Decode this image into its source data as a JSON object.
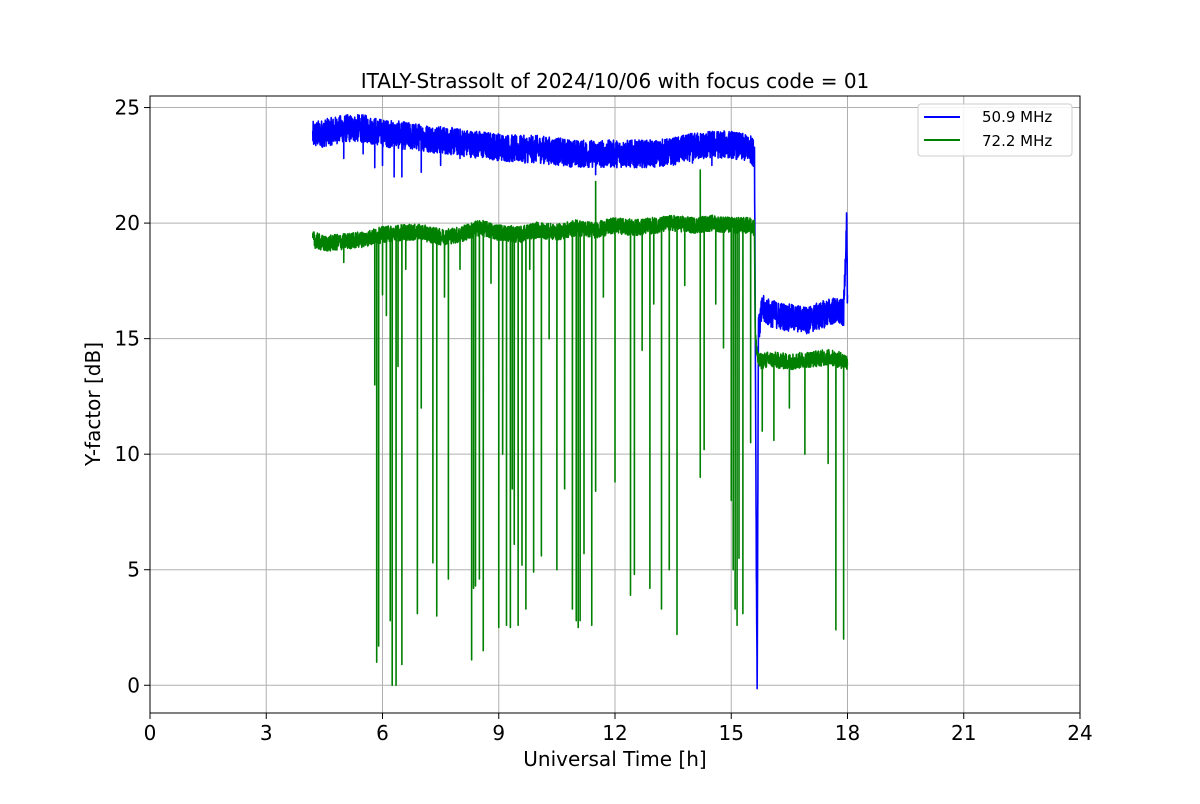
{
  "chart_data": {
    "type": "line",
    "title": "ITALY-Strassolt of 2024/10/06 with focus code = 01",
    "xlabel": "Universal Time [h]",
    "ylabel": "Y-factor [dB]",
    "xlim": [
      0,
      24
    ],
    "ylim": [
      -1.2,
      25.5
    ],
    "xticks": [
      0,
      3,
      6,
      9,
      12,
      15,
      18,
      21,
      24
    ],
    "yticks": [
      0,
      5,
      10,
      15,
      20,
      25
    ],
    "grid": true,
    "legend_position": "top-right",
    "series": [
      {
        "name": "50.9 MHz",
        "color": "#0000ff",
        "base": [
          [
            4.2,
            23.8
          ],
          [
            4.5,
            23.9
          ],
          [
            5.0,
            24.1
          ],
          [
            5.5,
            24.1
          ],
          [
            6.0,
            23.9
          ],
          [
            6.5,
            23.8
          ],
          [
            7.0,
            23.7
          ],
          [
            7.5,
            23.6
          ],
          [
            8.0,
            23.5
          ],
          [
            8.5,
            23.4
          ],
          [
            9.0,
            23.3
          ],
          [
            9.5,
            23.2
          ],
          [
            10.0,
            23.2
          ],
          [
            10.5,
            23.1
          ],
          [
            11.0,
            23.0
          ],
          [
            11.5,
            23.0
          ],
          [
            12.0,
            23.0
          ],
          [
            12.5,
            23.0
          ],
          [
            13.0,
            23.0
          ],
          [
            13.5,
            23.1
          ],
          [
            14.0,
            23.3
          ],
          [
            14.5,
            23.4
          ],
          [
            15.0,
            23.4
          ],
          [
            15.5,
            23.2
          ],
          [
            15.6,
            23.0
          ],
          [
            15.65,
            4.5
          ],
          [
            15.67,
            0.0
          ],
          [
            15.7,
            15.3
          ],
          [
            15.8,
            16.3
          ],
          [
            16.0,
            16.1
          ],
          [
            16.5,
            15.9
          ],
          [
            17.0,
            15.8
          ],
          [
            17.3,
            16.0
          ],
          [
            17.6,
            16.2
          ],
          [
            17.9,
            16.1
          ],
          [
            17.98,
            20.2
          ],
          [
            18.0,
            16.3
          ]
        ],
        "noise_amplitude": 0.6,
        "dips": [
          [
            5.0,
            22.8
          ],
          [
            5.5,
            23.0
          ],
          [
            5.8,
            22.4
          ],
          [
            6.0,
            22.5
          ],
          [
            6.3,
            22.0
          ],
          [
            6.5,
            22.0
          ],
          [
            7.0,
            22.2
          ],
          [
            7.5,
            22.5
          ],
          [
            8.0,
            22.8
          ],
          [
            11.5,
            22.1
          ],
          [
            12.5,
            22.4
          ],
          [
            13.0,
            22.5
          ],
          [
            14.0,
            22.6
          ],
          [
            14.5,
            22.5
          ]
        ],
        "spikes": []
      },
      {
        "name": "72.2 MHz",
        "color": "#008000",
        "base": [
          [
            4.2,
            19.3
          ],
          [
            4.5,
            19.1
          ],
          [
            5.0,
            19.2
          ],
          [
            5.5,
            19.3
          ],
          [
            6.0,
            19.5
          ],
          [
            6.5,
            19.6
          ],
          [
            7.0,
            19.6
          ],
          [
            7.5,
            19.4
          ],
          [
            8.0,
            19.5
          ],
          [
            8.5,
            19.8
          ],
          [
            9.0,
            19.6
          ],
          [
            9.5,
            19.5
          ],
          [
            10.0,
            19.7
          ],
          [
            10.5,
            19.6
          ],
          [
            11.0,
            19.8
          ],
          [
            11.5,
            19.7
          ],
          [
            12.0,
            19.9
          ],
          [
            12.5,
            19.8
          ],
          [
            13.0,
            19.9
          ],
          [
            13.5,
            20.0
          ],
          [
            14.0,
            19.9
          ],
          [
            14.5,
            20.0
          ],
          [
            15.0,
            19.9
          ],
          [
            15.5,
            19.9
          ],
          [
            15.6,
            19.8
          ],
          [
            15.62,
            15.0
          ],
          [
            15.7,
            14.0
          ],
          [
            16.0,
            14.1
          ],
          [
            16.5,
            14.0
          ],
          [
            17.0,
            14.1
          ],
          [
            17.5,
            14.2
          ],
          [
            18.0,
            14.0
          ]
        ],
        "noise_amplitude": 0.35,
        "dips": [
          [
            5.0,
            18.3
          ],
          [
            5.8,
            13.0
          ],
          [
            5.85,
            1.0
          ],
          [
            5.9,
            1.7
          ],
          [
            6.0,
            16.9
          ],
          [
            6.1,
            16.0
          ],
          [
            6.2,
            2.8
          ],
          [
            6.25,
            0.0
          ],
          [
            6.35,
            0.0
          ],
          [
            6.4,
            13.8
          ],
          [
            6.5,
            0.9
          ],
          [
            6.6,
            18.0
          ],
          [
            6.9,
            3.1
          ],
          [
            7.0,
            12.0
          ],
          [
            7.3,
            5.3
          ],
          [
            7.4,
            3.0
          ],
          [
            7.6,
            16.8
          ],
          [
            7.7,
            4.6
          ],
          [
            8.0,
            18.0
          ],
          [
            8.3,
            1.1
          ],
          [
            8.35,
            4.2
          ],
          [
            8.4,
            4.3
          ],
          [
            8.5,
            4.6
          ],
          [
            8.6,
            1.5
          ],
          [
            8.8,
            17.4
          ],
          [
            9.0,
            2.5
          ],
          [
            9.1,
            10.0
          ],
          [
            9.2,
            2.6
          ],
          [
            9.3,
            2.5
          ],
          [
            9.35,
            8.5
          ],
          [
            9.4,
            6.1
          ],
          [
            9.5,
            2.6
          ],
          [
            9.6,
            5.2
          ],
          [
            9.7,
            3.3
          ],
          [
            9.8,
            18.0
          ],
          [
            9.9,
            4.9
          ],
          [
            10.1,
            5.6
          ],
          [
            10.3,
            15.0
          ],
          [
            10.5,
            5.0
          ],
          [
            10.7,
            8.5
          ],
          [
            10.9,
            3.3
          ],
          [
            11.0,
            2.8
          ],
          [
            11.05,
            2.5
          ],
          [
            11.1,
            2.8
          ],
          [
            11.2,
            5.7
          ],
          [
            11.4,
            2.6
          ],
          [
            11.5,
            8.4
          ],
          [
            11.7,
            16.8
          ],
          [
            12.0,
            8.8
          ],
          [
            12.4,
            3.9
          ],
          [
            12.5,
            4.8
          ],
          [
            12.7,
            14.5
          ],
          [
            12.9,
            4.2
          ],
          [
            13.0,
            16.5
          ],
          [
            13.2,
            3.3
          ],
          [
            13.4,
            5.0
          ],
          [
            13.6,
            2.2
          ],
          [
            13.8,
            17.3
          ],
          [
            14.2,
            9.0
          ],
          [
            14.3,
            10.2
          ],
          [
            14.6,
            16.5
          ],
          [
            14.8,
            14.6
          ],
          [
            15.0,
            8.0
          ],
          [
            15.05,
            5.0
          ],
          [
            15.1,
            3.3
          ],
          [
            15.15,
            2.6
          ],
          [
            15.2,
            5.5
          ],
          [
            15.3,
            3.1
          ],
          [
            15.5,
            10.5
          ],
          [
            15.8,
            11.0
          ],
          [
            16.1,
            10.6
          ],
          [
            16.5,
            12.0
          ],
          [
            16.9,
            10.0
          ],
          [
            17.5,
            9.6
          ],
          [
            17.7,
            2.4
          ],
          [
            17.9,
            2.0
          ]
        ],
        "spikes": [
          [
            11.5,
            21.8
          ],
          [
            14.2,
            22.3
          ]
        ]
      }
    ]
  }
}
